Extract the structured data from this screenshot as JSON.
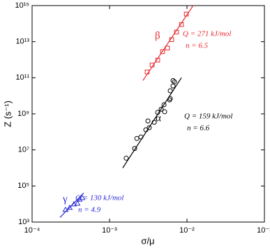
{
  "chart_data": {
    "type": "scatter",
    "x_label": "σ/μ",
    "y_label": "Z (s⁻¹)",
    "log_x": true,
    "log_y": true,
    "xlim": [
      0.0001,
      0.1
    ],
    "ylim": [
      1000,
      1000000000000000.0
    ],
    "xticks": [
      {
        "value": 0.0001,
        "label": "10⁻⁴"
      },
      {
        "value": 0.001,
        "label": "10⁻³"
      },
      {
        "value": 0.01,
        "label": "10⁻²"
      },
      {
        "value": 0.1,
        "label": "10⁻¹"
      }
    ],
    "yticks": [
      {
        "value": 1000,
        "label": "10³"
      },
      {
        "value": 100000,
        "label": "10⁵"
      },
      {
        "value": 10000000,
        "label": "10⁷"
      },
      {
        "value": 1000000000,
        "label": "10⁹"
      },
      {
        "value": 100000000000,
        "label": "10¹¹"
      },
      {
        "value": 10000000000000,
        "label": "10¹³"
      },
      {
        "value": 1000000000000000,
        "label": "10¹⁵"
      }
    ],
    "series": [
      {
        "name": "β",
        "color": "#e8282d",
        "marker": "square",
        "x": [
          0.00306,
          0.00355,
          0.00419,
          0.00484,
          0.0056,
          0.00634,
          0.00733,
          0.00848,
          0.0098
        ],
        "values": [
          210000000000.0,
          510000000000.0,
          950000000000.0,
          2800000000000.0,
          4400000000000.0,
          13000000000000.0,
          34000000000000.0,
          89000000000000.0,
          340000000000000.0
        ],
        "fit_x": [
          0.0027,
          0.012
        ],
        "fit_y": [
          70000000000.0,
          1000000000000000.0
        ],
        "annotation": [
          "Q = 271 kJ/mol",
          "n = 6.5"
        ]
      },
      {
        "name": "α",
        "color": "#000000",
        "marker": "circle",
        "x": [
          0.00164,
          0.00211,
          0.00225,
          0.00254,
          0.00294,
          0.00326,
          0.00313,
          0.00378,
          0.00419,
          0.00464,
          0.00505,
          0.00515,
          0.00596,
          0.00608,
          0.00608,
          0.00661,
          0.00689,
          0.00661
        ],
        "values": [
          3500000.0,
          12000000.0,
          43000000.0,
          52000000.0,
          130000000.0,
          170000000.0,
          400000000.0,
          340000000.0,
          1200000000.0,
          1800000000.0,
          3200000000.0,
          1300000000.0,
          5900000000.0,
          7000000000.0,
          19000000000.0,
          35000000000.0,
          60000000000.0,
          70000000000.0
        ],
        "fit_x": [
          0.00148,
          0.00848
        ],
        "fit_y": [
          1000000.0,
          100000000000.0
        ],
        "annotation": [
          "Q = 159 kJ/mol",
          "n = 6.6"
        ]
      },
      {
        "name": "γ",
        "color": "#2b2bd6",
        "marker": "triangle",
        "x": [
          0.00027,
          0.000306,
          0.000347,
          0.000385,
          0.00041,
          0.000445
        ],
        "values": [
          4800,
          6300,
          9800,
          10700,
          18000,
          22000
        ],
        "fit_x": [
          0.000229,
          0.000464
        ],
        "fit_y": [
          1800,
          41000
        ],
        "annotation": [
          "Q = 130 kJ/mol",
          "n = 4.9"
        ]
      }
    ]
  }
}
